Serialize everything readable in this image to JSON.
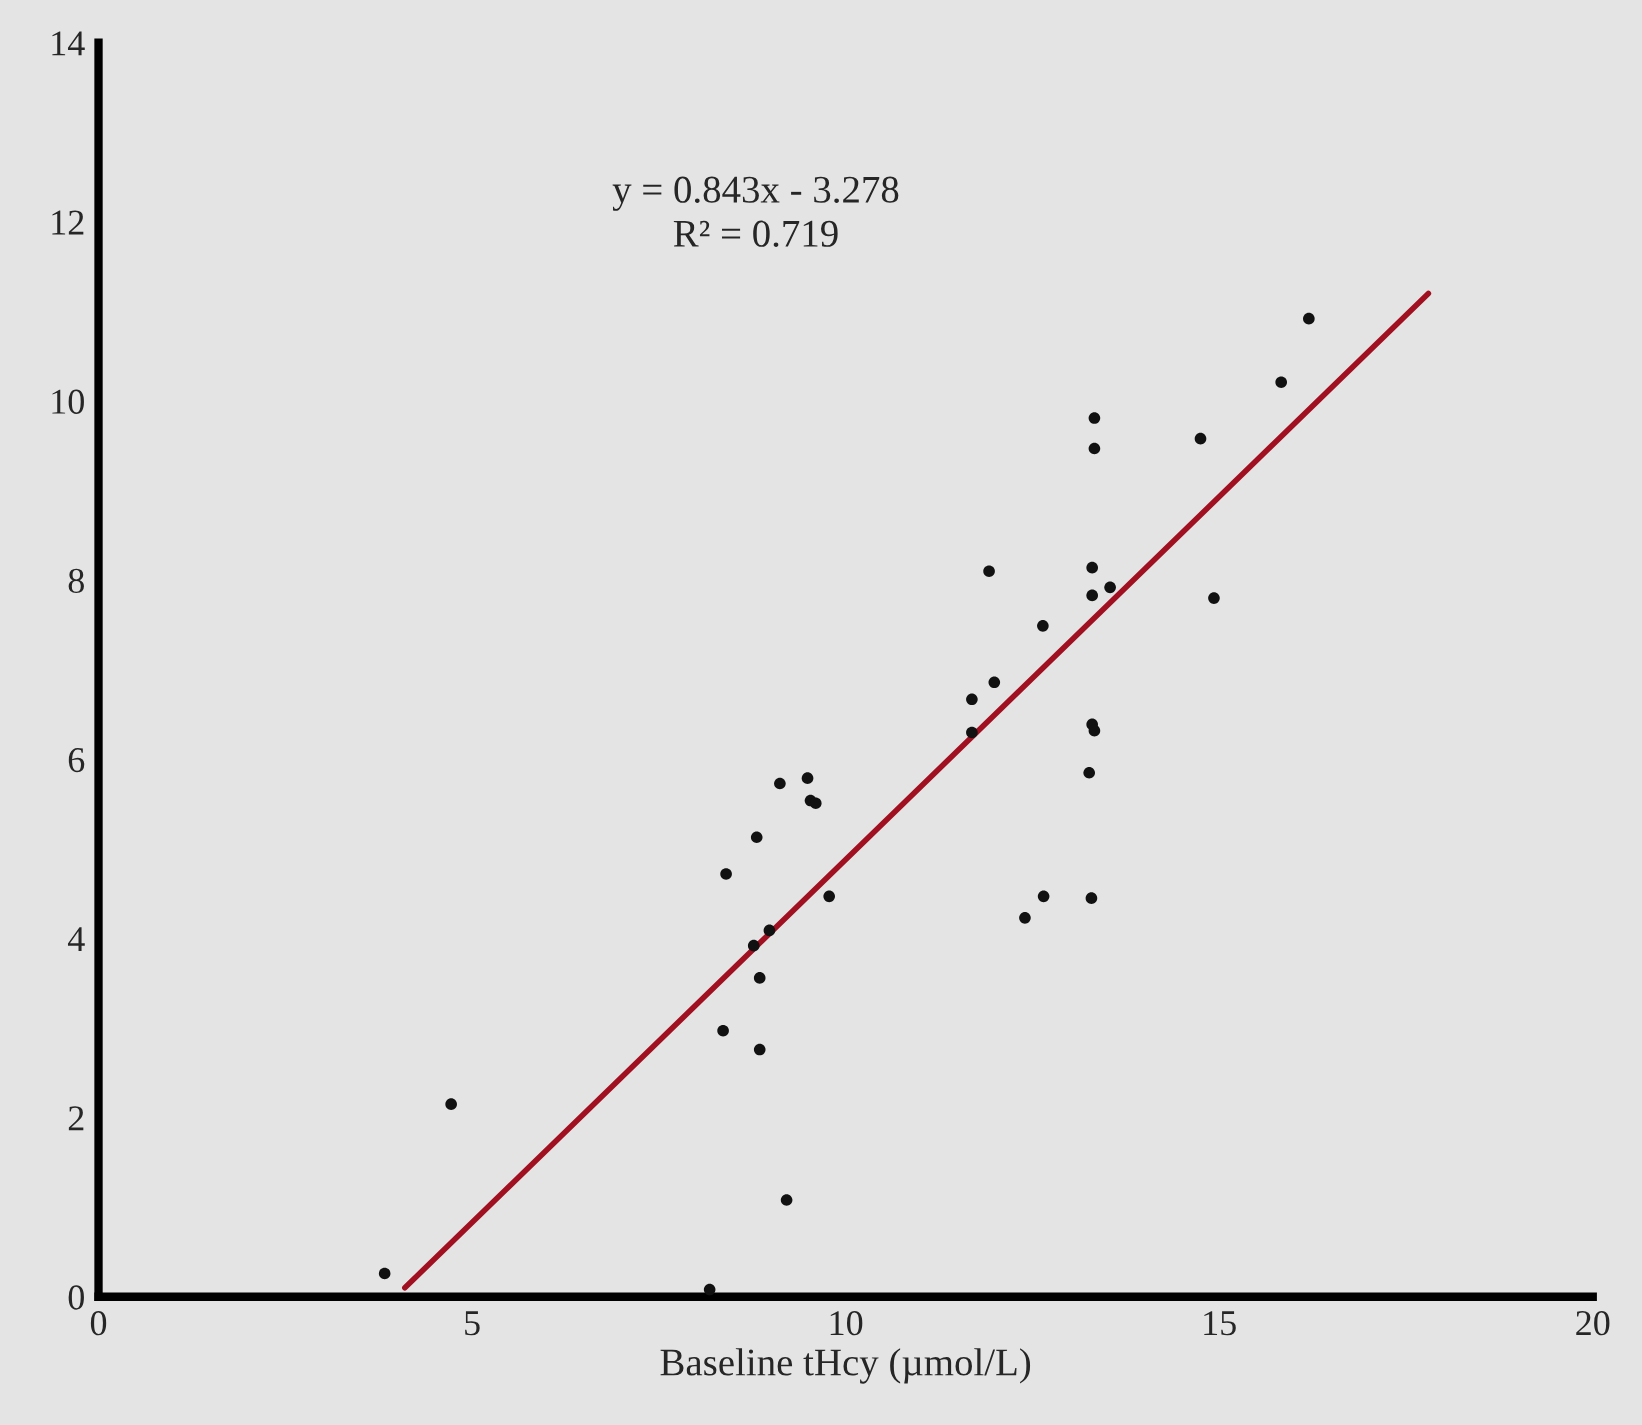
{
  "chart_data": {
    "type": "scatter",
    "xlabel": "Baseline tHcy (µmol/L)",
    "annotations": [
      "y = 0.843x - 3.278",
      "R² = 0.719"
    ],
    "xlim": [
      0,
      20
    ],
    "xticks": [
      0,
      5,
      10,
      15,
      20
    ],
    "ylim": [
      0,
      14
    ],
    "yticks": [
      0,
      2,
      4,
      6,
      8,
      10,
      12,
      14
    ],
    "grid": false,
    "marker": "circle",
    "series": [
      {
        "color": "#111111",
        "x": [
          3.83,
          4.72,
          8.18,
          8.36,
          8.4,
          8.81,
          8.85,
          8.85,
          8.77,
          8.98,
          9.12,
          9.21,
          9.49,
          9.53,
          9.6,
          9.78,
          11.69,
          11.69,
          11.92,
          11.99,
          12.4,
          12.64,
          12.65,
          13.26,
          13.29,
          13.3,
          13.33,
          13.3,
          13.3,
          13.33,
          13.33,
          13.54,
          14.75,
          14.93,
          15.83,
          16.2
        ],
        "values": [
          0.26,
          2.15,
          0.08,
          2.97,
          4.72,
          5.13,
          3.56,
          2.76,
          3.92,
          4.09,
          5.73,
          1.08,
          5.79,
          5.54,
          5.51,
          4.47,
          6.67,
          6.3,
          8.1,
          6.86,
          4.23,
          7.49,
          4.47,
          5.85,
          4.45,
          6.39,
          6.32,
          8.14,
          7.83,
          9.81,
          9.47,
          7.92,
          9.58,
          7.8,
          10.21,
          10.92
        ]
      },
      {
        "type": "line",
        "marker": "none",
        "color": "#a01020",
        "x": [
          4.1,
          17.8
        ],
        "values": [
          0.1,
          11.2
        ]
      }
    ]
  }
}
